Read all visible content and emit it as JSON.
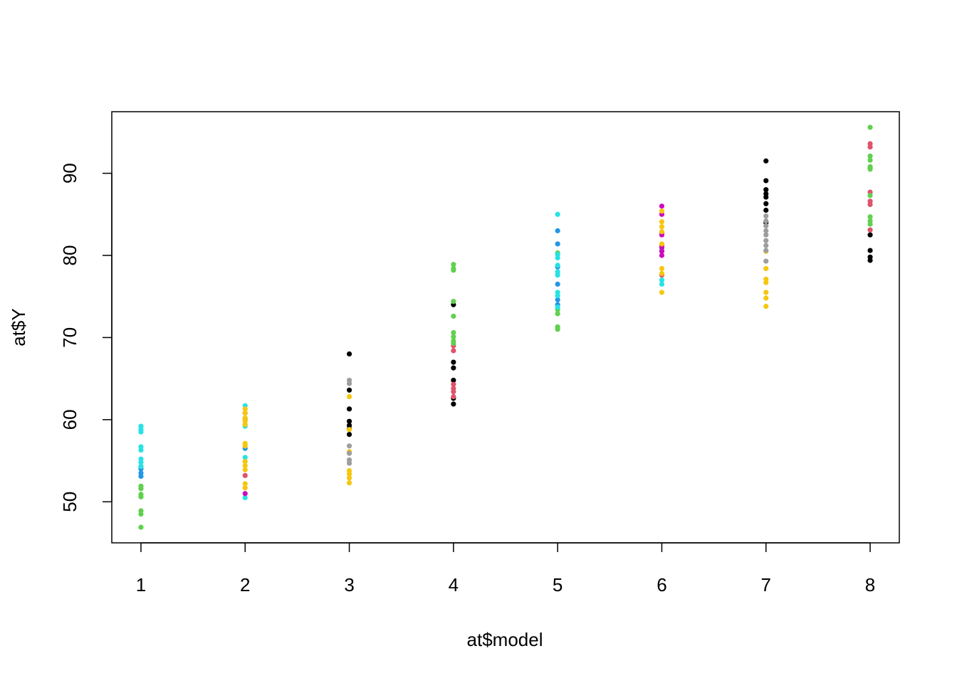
{
  "chart_data": {
    "type": "scatter",
    "x_label": "at$model",
    "y_label": "at$Y",
    "xlim": [
      0.72,
      8.28
    ],
    "ylim": [
      45.0,
      97.5
    ],
    "xticks": [
      1,
      2,
      3,
      4,
      5,
      6,
      7,
      8
    ],
    "yticks": [
      50,
      60,
      70,
      80,
      90
    ],
    "series": [
      {
        "color": "#000000",
        "x": [
          3,
          3,
          3,
          3,
          3,
          3,
          3,
          4,
          4,
          4,
          4,
          4,
          4,
          7,
          7,
          7,
          7,
          7,
          7,
          7,
          7,
          8,
          8,
          8,
          8
        ],
        "values": [
          68.0,
          63.6,
          61.3,
          59.8,
          59.3,
          58.9,
          58.2,
          74.0,
          67.0,
          66.3,
          64.8,
          62.6,
          61.9,
          91.5,
          89.1,
          88.0,
          87.5,
          87.1,
          86.3,
          85.5,
          84.0,
          82.5,
          80.6,
          79.8,
          79.4
        ]
      },
      {
        "color": "#DF536B",
        "x": [
          2,
          2,
          4,
          4,
          4,
          4,
          4,
          4,
          6,
          6,
          6,
          8,
          8,
          8,
          8,
          8,
          8,
          8
        ],
        "values": [
          60.1,
          53.2,
          69.0,
          68.4,
          64.3,
          63.8,
          63.4,
          62.8,
          82.8,
          81.2,
          77.6,
          93.6,
          93.2,
          90.7,
          87.7,
          86.6,
          86.2,
          83.1
        ]
      },
      {
        "color": "#61D04F",
        "x": [
          1,
          1,
          1,
          1,
          1,
          1,
          1,
          4,
          4,
          4,
          4,
          4,
          4,
          4,
          4,
          4,
          5,
          5,
          5,
          5,
          5,
          6,
          8,
          8,
          8,
          8,
          8,
          8,
          8,
          8,
          8
        ],
        "values": [
          51.9,
          51.6,
          50.9,
          50.6,
          48.9,
          48.5,
          46.9,
          78.9,
          78.4,
          78.2,
          74.4,
          72.6,
          70.6,
          70.1,
          69.6,
          69.3,
          80.3,
          73.4,
          72.9,
          71.3,
          71.0,
          80.9,
          95.6,
          92.1,
          91.6,
          90.8,
          90.5,
          87.3,
          84.7,
          84.2,
          83.8
        ]
      },
      {
        "color": "#2297E6",
        "x": [
          1,
          1,
          1,
          1,
          2,
          5,
          5,
          5,
          5,
          5,
          5
        ],
        "values": [
          54.3,
          54.0,
          53.5,
          53.1,
          56.5,
          83.0,
          81.4,
          78.6,
          76.5,
          74.6,
          74.0
        ]
      },
      {
        "color": "#28E2E5",
        "x": [
          1,
          1,
          1,
          1,
          1,
          1,
          1,
          1,
          2,
          2,
          2,
          2,
          5,
          5,
          5,
          5,
          5,
          5,
          5,
          5,
          5,
          6,
          6,
          6
        ],
        "values": [
          59.2,
          58.8,
          58.5,
          56.7,
          56.3,
          55.2,
          54.8,
          54.3,
          61.7,
          59.2,
          55.4,
          50.5,
          85.0,
          80.1,
          79.7,
          78.8,
          78.0,
          77.6,
          75.5,
          75.1,
          73.7,
          80.6,
          77.0,
          76.5
        ]
      },
      {
        "color": "#CD0BBC",
        "x": [
          2,
          2,
          6,
          6,
          6,
          6,
          6,
          6
        ],
        "values": [
          60.8,
          51.0,
          86.0,
          85.0,
          82.5,
          81.0,
          80.5,
          80.0
        ]
      },
      {
        "color": "#F5C710",
        "x": [
          2,
          2,
          2,
          2,
          2,
          2,
          2,
          2,
          2,
          2,
          2,
          2,
          3,
          3,
          3,
          3,
          3,
          3,
          3,
          6,
          6,
          6,
          6,
          6,
          6,
          6,
          6,
          7,
          7,
          7,
          7,
          7,
          7,
          7
        ],
        "values": [
          61.3,
          60.8,
          60.2,
          59.8,
          59.4,
          57.1,
          56.8,
          54.9,
          54.4,
          53.9,
          52.2,
          51.7,
          62.8,
          58.8,
          56.1,
          53.8,
          53.4,
          52.9,
          52.3,
          85.4,
          84.1,
          83.5,
          82.9,
          81.4,
          78.4,
          77.8,
          75.5,
          80.5,
          78.4,
          77.1,
          76.7,
          75.5,
          74.8,
          73.8
        ]
      },
      {
        "color": "#9E9E9E",
        "x": [
          3,
          3,
          3,
          3,
          3,
          3,
          7,
          7,
          7,
          7,
          7,
          7,
          7,
          7,
          7
        ],
        "values": [
          64.8,
          64.4,
          56.8,
          55.9,
          55.1,
          54.7,
          84.8,
          84.2,
          83.6,
          83.0,
          82.5,
          81.8,
          81.2,
          80.6,
          79.3
        ]
      }
    ]
  }
}
